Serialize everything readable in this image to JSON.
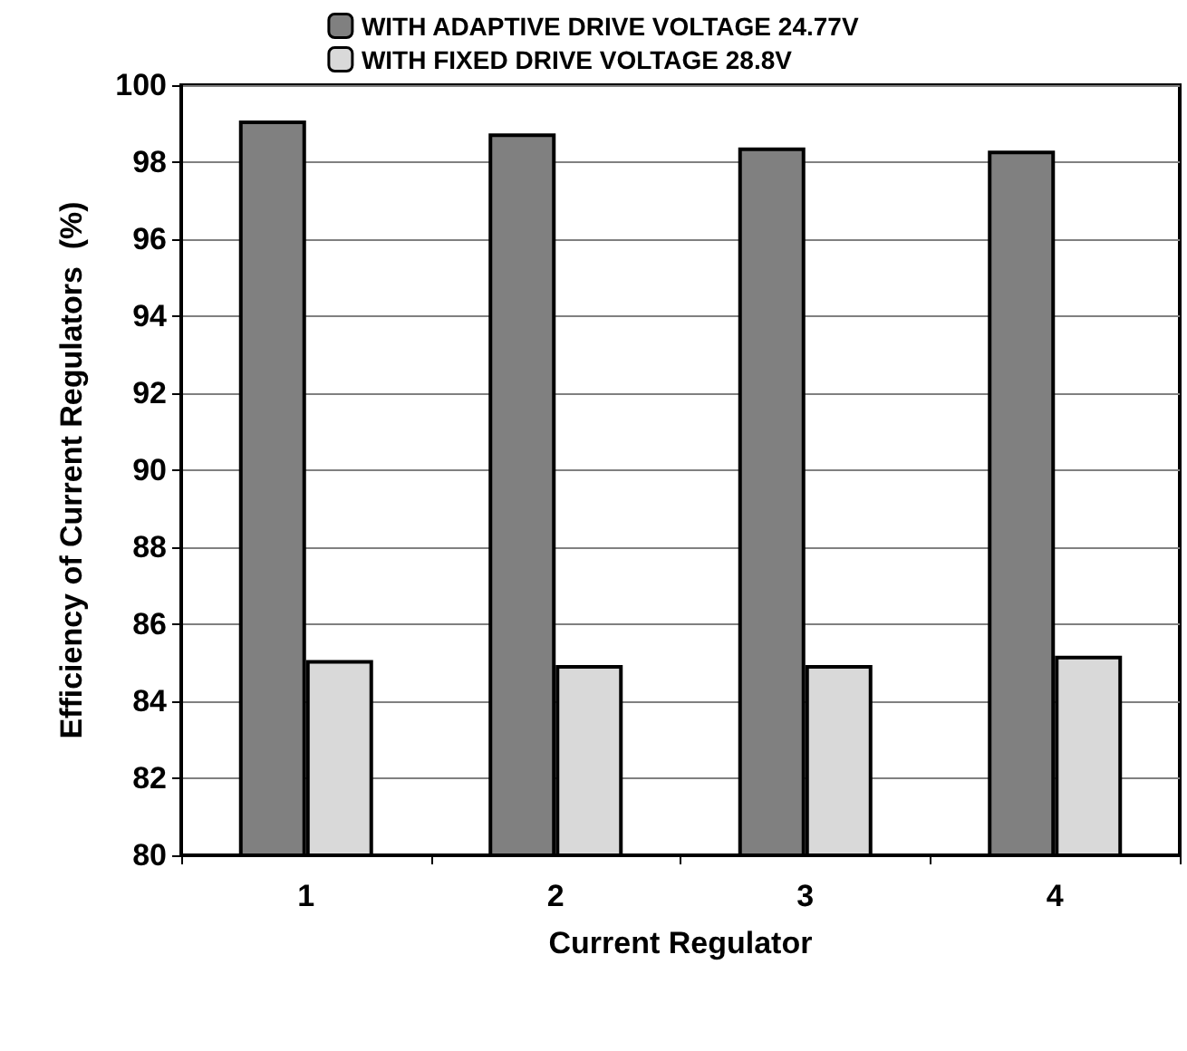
{
  "chart_data": {
    "type": "bar",
    "xlabel": "Current Regulator",
    "ylabel": "Efficiency of Current Regulators  (%)",
    "categories": [
      "1",
      "2",
      "3",
      "4"
    ],
    "series": [
      {
        "name": "WITH ADAPTIVE DRIVE VOLTAGE 24.77V",
        "color": "#808080",
        "values": [
          99.08,
          98.75,
          98.38,
          98.3
        ]
      },
      {
        "name": "WITH FIXED DRIVE VOLTAGE 28.8V",
        "color": "#d9d9d9",
        "values": [
          85.07,
          84.94,
          84.94,
          85.18
        ]
      }
    ],
    "ylim": [
      80,
      100
    ],
    "yticks": [
      80,
      82,
      84,
      86,
      88,
      90,
      92,
      94,
      96,
      98,
      100
    ],
    "grid": "y",
    "legend": "top"
  }
}
